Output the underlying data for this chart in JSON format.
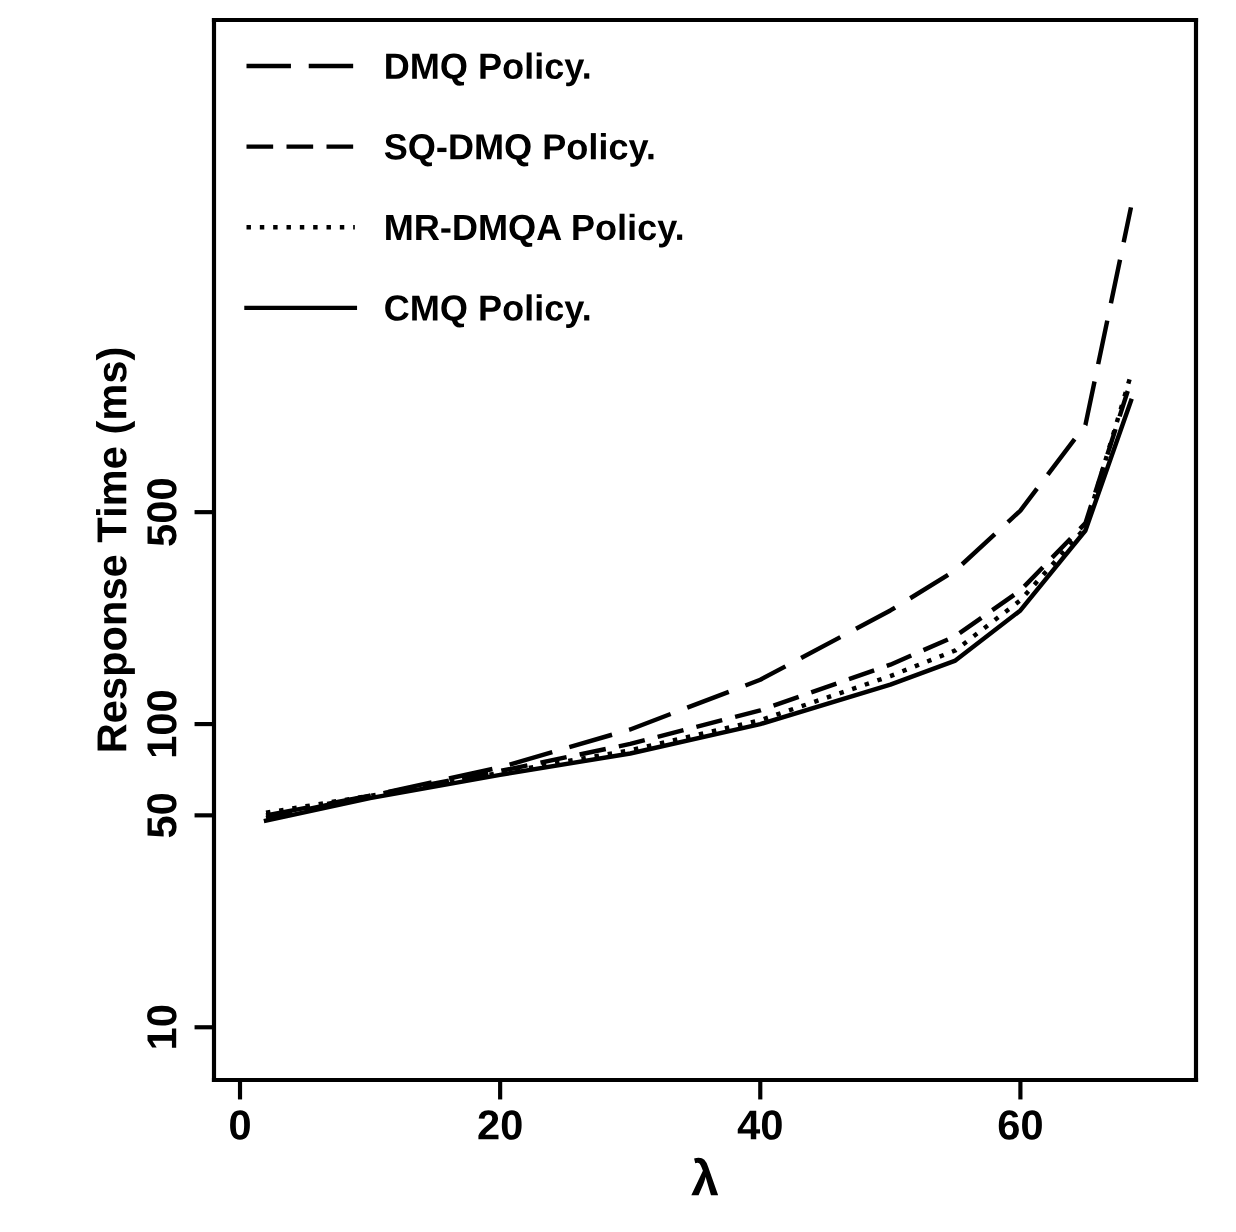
{
  "chart_data": {
    "type": "line",
    "xlabel": "λ",
    "ylabel": "Response Time (ms)",
    "log": "y",
    "xlim": [
      -2,
      73.5
    ],
    "ylim": [
      6.7,
      21000
    ],
    "xticks": [
      0,
      20,
      40,
      60
    ],
    "yticks": [
      10,
      50,
      100,
      500
    ],
    "grid": false,
    "legend": "top left",
    "marker": "none",
    "x": [
      2,
      10,
      20,
      30,
      40,
      50,
      55,
      60,
      65,
      68.5
    ],
    "series": [
      {
        "name": "DMQ Policy.",
        "color": "#000000",
        "line_style": "dashed",
        "values": [
          50,
          58,
          72,
          96,
          140,
          237,
          321,
          506,
          970,
          5060
        ]
      },
      {
        "name": "SQ-DMQ Policy.",
        "color": "#000000",
        "line_style": "dashed",
        "values": [
          49,
          58,
          70,
          86,
          111,
          157,
          195,
          276,
          460,
          1355
        ]
      },
      {
        "name": "MR-DMQA Policy.",
        "color": "#000000",
        "line_style": "dotted",
        "values": [
          51,
          58,
          69,
          82,
          103,
          144,
          175,
          256,
          445,
          1420
        ]
      },
      {
        "name": "CMQ Policy.",
        "color": "#000000",
        "line_style": "solid",
        "values": [
          48,
          57,
          68,
          80,
          100,
          135,
          162,
          237,
          435,
          1164
        ]
      }
    ]
  }
}
